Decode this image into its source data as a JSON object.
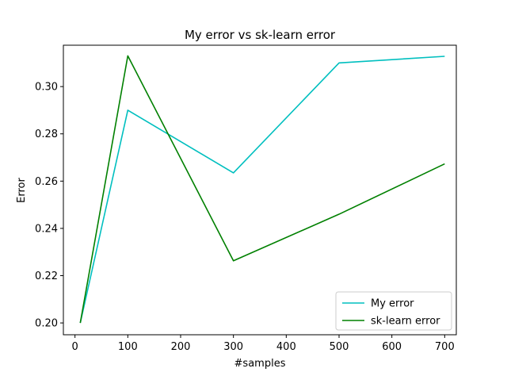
{
  "chart_data": {
    "type": "line",
    "title": "My error vs sk-learn error",
    "xlabel": "#samples",
    "ylabel": "Error",
    "xlim": [
      -22,
      722
    ],
    "ylim": [
      0.195,
      0.3175
    ],
    "xticks": [
      0,
      100,
      200,
      300,
      400,
      500,
      600,
      700
    ],
    "xtick_labels": [
      "0",
      "100",
      "200",
      "300",
      "400",
      "500",
      "600",
      "700"
    ],
    "yticks": [
      0.2,
      0.22,
      0.24,
      0.26,
      0.28,
      0.3
    ],
    "ytick_labels": [
      "0.20",
      "0.22",
      "0.24",
      "0.26",
      "0.28",
      "0.30"
    ],
    "grid": false,
    "legend_position": "lower-right",
    "series": [
      {
        "name": "My error",
        "color": "#00bfbf",
        "x": [
          10,
          100,
          300,
          500,
          700
        ],
        "y": [
          0.2,
          0.29,
          0.2635,
          0.31,
          0.3128
        ]
      },
      {
        "name": "sk-learn error",
        "color": "#008000",
        "x": [
          10,
          100,
          300,
          500,
          700
        ],
        "y": [
          0.2,
          0.313,
          0.2263,
          0.246,
          0.2673
        ]
      }
    ]
  }
}
